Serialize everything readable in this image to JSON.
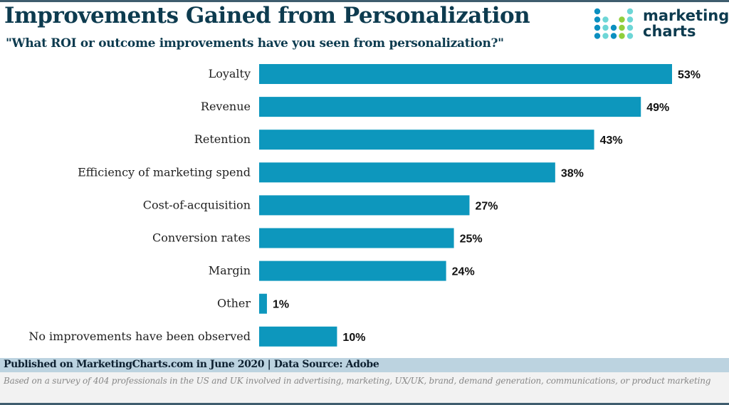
{
  "header": {
    "title": "Improvements Gained from Personalization",
    "subtitle": "\"What ROI or outcome improvements have you seen from personalization?\"",
    "logo_text": "marketing charts"
  },
  "chart_data": {
    "type": "bar",
    "orientation": "horizontal",
    "title": "Improvements Gained from Personalization",
    "subtitle": "\"What ROI or outcome improvements have you seen from personalization?\"",
    "categories": [
      "Loyalty",
      "Revenue",
      "Retention",
      "Efficiency of marketing spend",
      "Cost-of-acquisition",
      "Conversion rates",
      "Margin",
      "Other",
      "No improvements have been observed"
    ],
    "values": [
      53,
      49,
      43,
      38,
      27,
      25,
      24,
      1,
      10
    ],
    "value_labels": [
      "53%",
      "49%",
      "43%",
      "38%",
      "27%",
      "25%",
      "24%",
      "1%",
      "10%"
    ],
    "unit": "%",
    "xlim": [
      0,
      53
    ],
    "grid": false,
    "bar_color": "#0d97bd"
  },
  "footer": {
    "published": "Published on MarketingCharts.com in June 2020 | Data Source: Adobe",
    "note": "Based on a survey of 404 professionals in the US and UK involved in advertising, marketing, UX/UK, brand, demand generation, communications, or product marketing"
  },
  "colors": {
    "title": "#0d3b4f",
    "bar": "#0d97bd",
    "footer_band": "#bcd3e0",
    "logo_blue": "#0b8fc0",
    "logo_teal": "#6dd6d6",
    "logo_green": "#8fcf3c"
  }
}
